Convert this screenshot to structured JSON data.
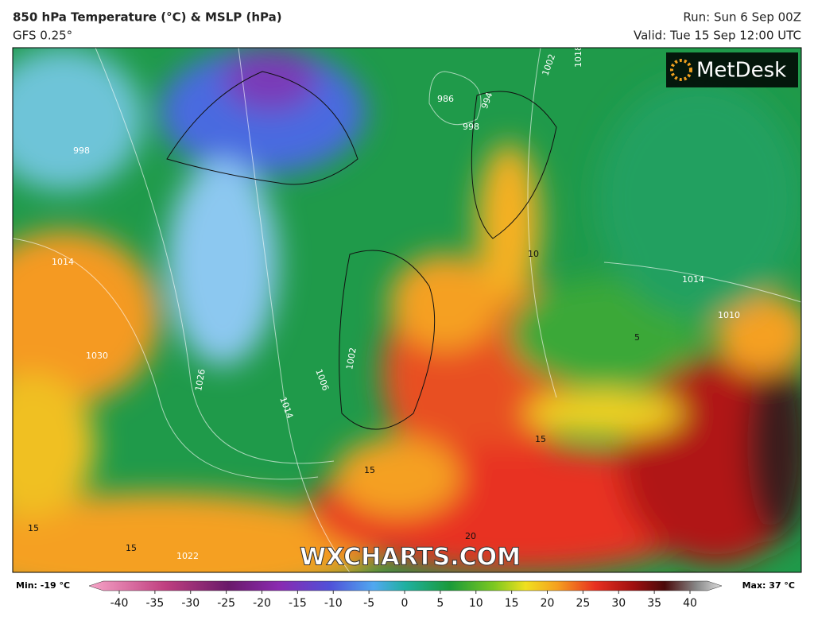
{
  "header": {
    "title": "850 hPa Temperature (°C) & MSLP (hPa)",
    "subtitle": "GFS 0.25°",
    "run": "Run: Sun 6 Sep 00Z",
    "valid": "Valid: Tue 15 Sep 12:00 UTC"
  },
  "logo": "MetDesk",
  "watermark": "WXCHARTS.COM",
  "map": {
    "isobar_labels": [
      "1014",
      "1030",
      "1026",
      "1014",
      "1006",
      "1002",
      "986",
      "994",
      "998",
      "1002",
      "1018",
      "1014",
      "1010",
      "1022",
      "998"
    ],
    "temperature_labels": [
      "15",
      "15",
      "15",
      "15",
      "5",
      "10",
      "20"
    ]
  },
  "colorbar": {
    "min_label": "Min: -19 °C",
    "max_label": "Max: 37 °C",
    "lim": [
      -40,
      40
    ],
    "ticks": [
      -40,
      -35,
      -30,
      -25,
      -20,
      -15,
      -10,
      -5,
      0,
      5,
      10,
      15,
      20,
      25,
      30,
      35,
      40
    ]
  }
}
